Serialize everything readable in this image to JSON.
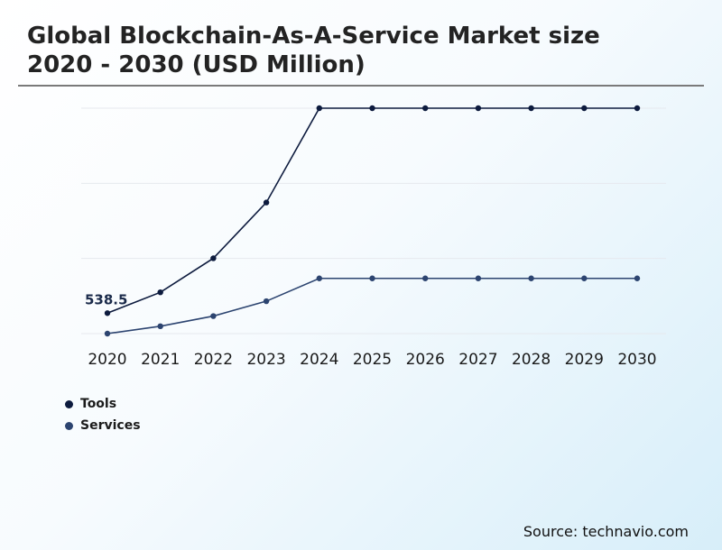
{
  "chart_data": {
    "type": "line",
    "title": "Global Blockchain-As-A-Service Market size 2020 - 2030 (USD Million)",
    "categories": [
      "2020",
      "2021",
      "2022",
      "2023",
      "2024",
      "2025",
      "2026",
      "2027",
      "2028",
      "2029",
      "2030"
    ],
    "series": [
      {
        "name": "Tools",
        "color": "#0d1b3e",
        "values": [
          538.5,
          1086,
          1980,
          3447,
          5926,
          5926,
          5926,
          5926,
          5926,
          5926,
          5926
        ]
      },
      {
        "name": "Services",
        "color": "#2c4470",
        "values": [
          0,
          194,
          461,
          852,
          1452,
          1452,
          1452,
          1452,
          1452,
          1452,
          1452
        ]
      }
    ],
    "annotations": [
      {
        "series": "Tools",
        "index": 0,
        "label": "538.5"
      }
    ],
    "ylim": [
      0,
      5926
    ],
    "grid": true,
    "legend_position": "bottom-left",
    "xlabel": "",
    "ylabel": ""
  },
  "source": "Source: technavio.com"
}
